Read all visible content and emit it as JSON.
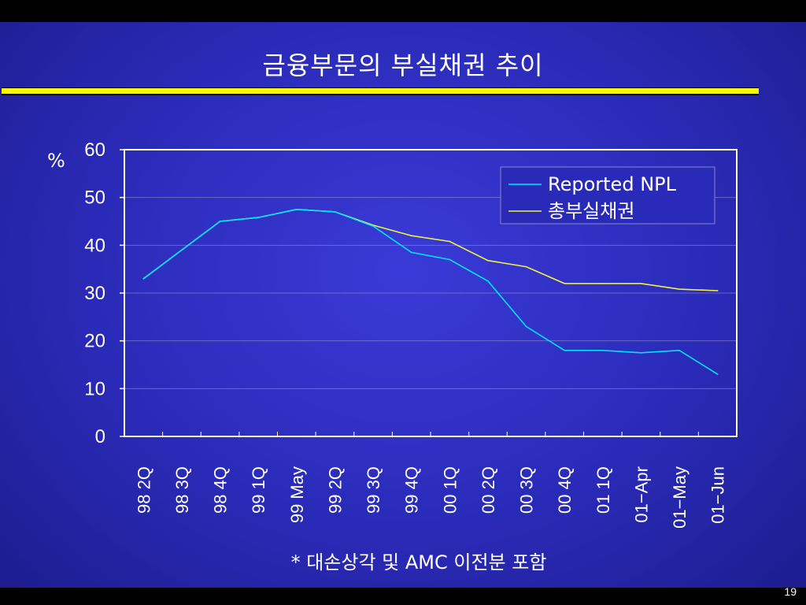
{
  "slide": {
    "title": "금융부문의 부실채권 추이",
    "footnote": "* 대손상각 및 AMC 이전분 포함",
    "page_number": "19"
  },
  "colors": {
    "background": "#2a2ab8",
    "accent_rule": "#f8f80a",
    "series_reported": "#00e5ff",
    "series_total": "#f0f040"
  },
  "chart_data": {
    "type": "line",
    "title": "",
    "ylabel": "%",
    "xlabel": "",
    "ylim": [
      0,
      60
    ],
    "yticks": [
      0,
      10,
      20,
      30,
      40,
      50,
      60
    ],
    "grid": "horizontal",
    "legend_position": "top-right",
    "categories": [
      "98 2Q",
      "98 3Q",
      "98 4Q",
      "99 1Q",
      "99 May",
      "99 2Q",
      "99 3Q",
      "99 4Q",
      "00 1Q",
      "00 2Q",
      "00 3Q",
      "00 4Q",
      "01 1Q",
      "01−Apr",
      "01−May",
      "01−Jun"
    ],
    "series": [
      {
        "name": "Reported NPL",
        "color": "#00e5ff",
        "values": [
          33,
          39,
          45,
          45.8,
          47.5,
          47,
          44,
          38.5,
          37,
          32.5,
          23,
          18,
          18,
          17.5,
          18,
          13
        ]
      },
      {
        "name": "총부실채권",
        "color": "#f0f040",
        "values": [
          33,
          39,
          45,
          45.8,
          47.5,
          47,
          44.2,
          42,
          40.8,
          36.8,
          35.5,
          32,
          32,
          32,
          30.8,
          30.5
        ]
      }
    ]
  }
}
